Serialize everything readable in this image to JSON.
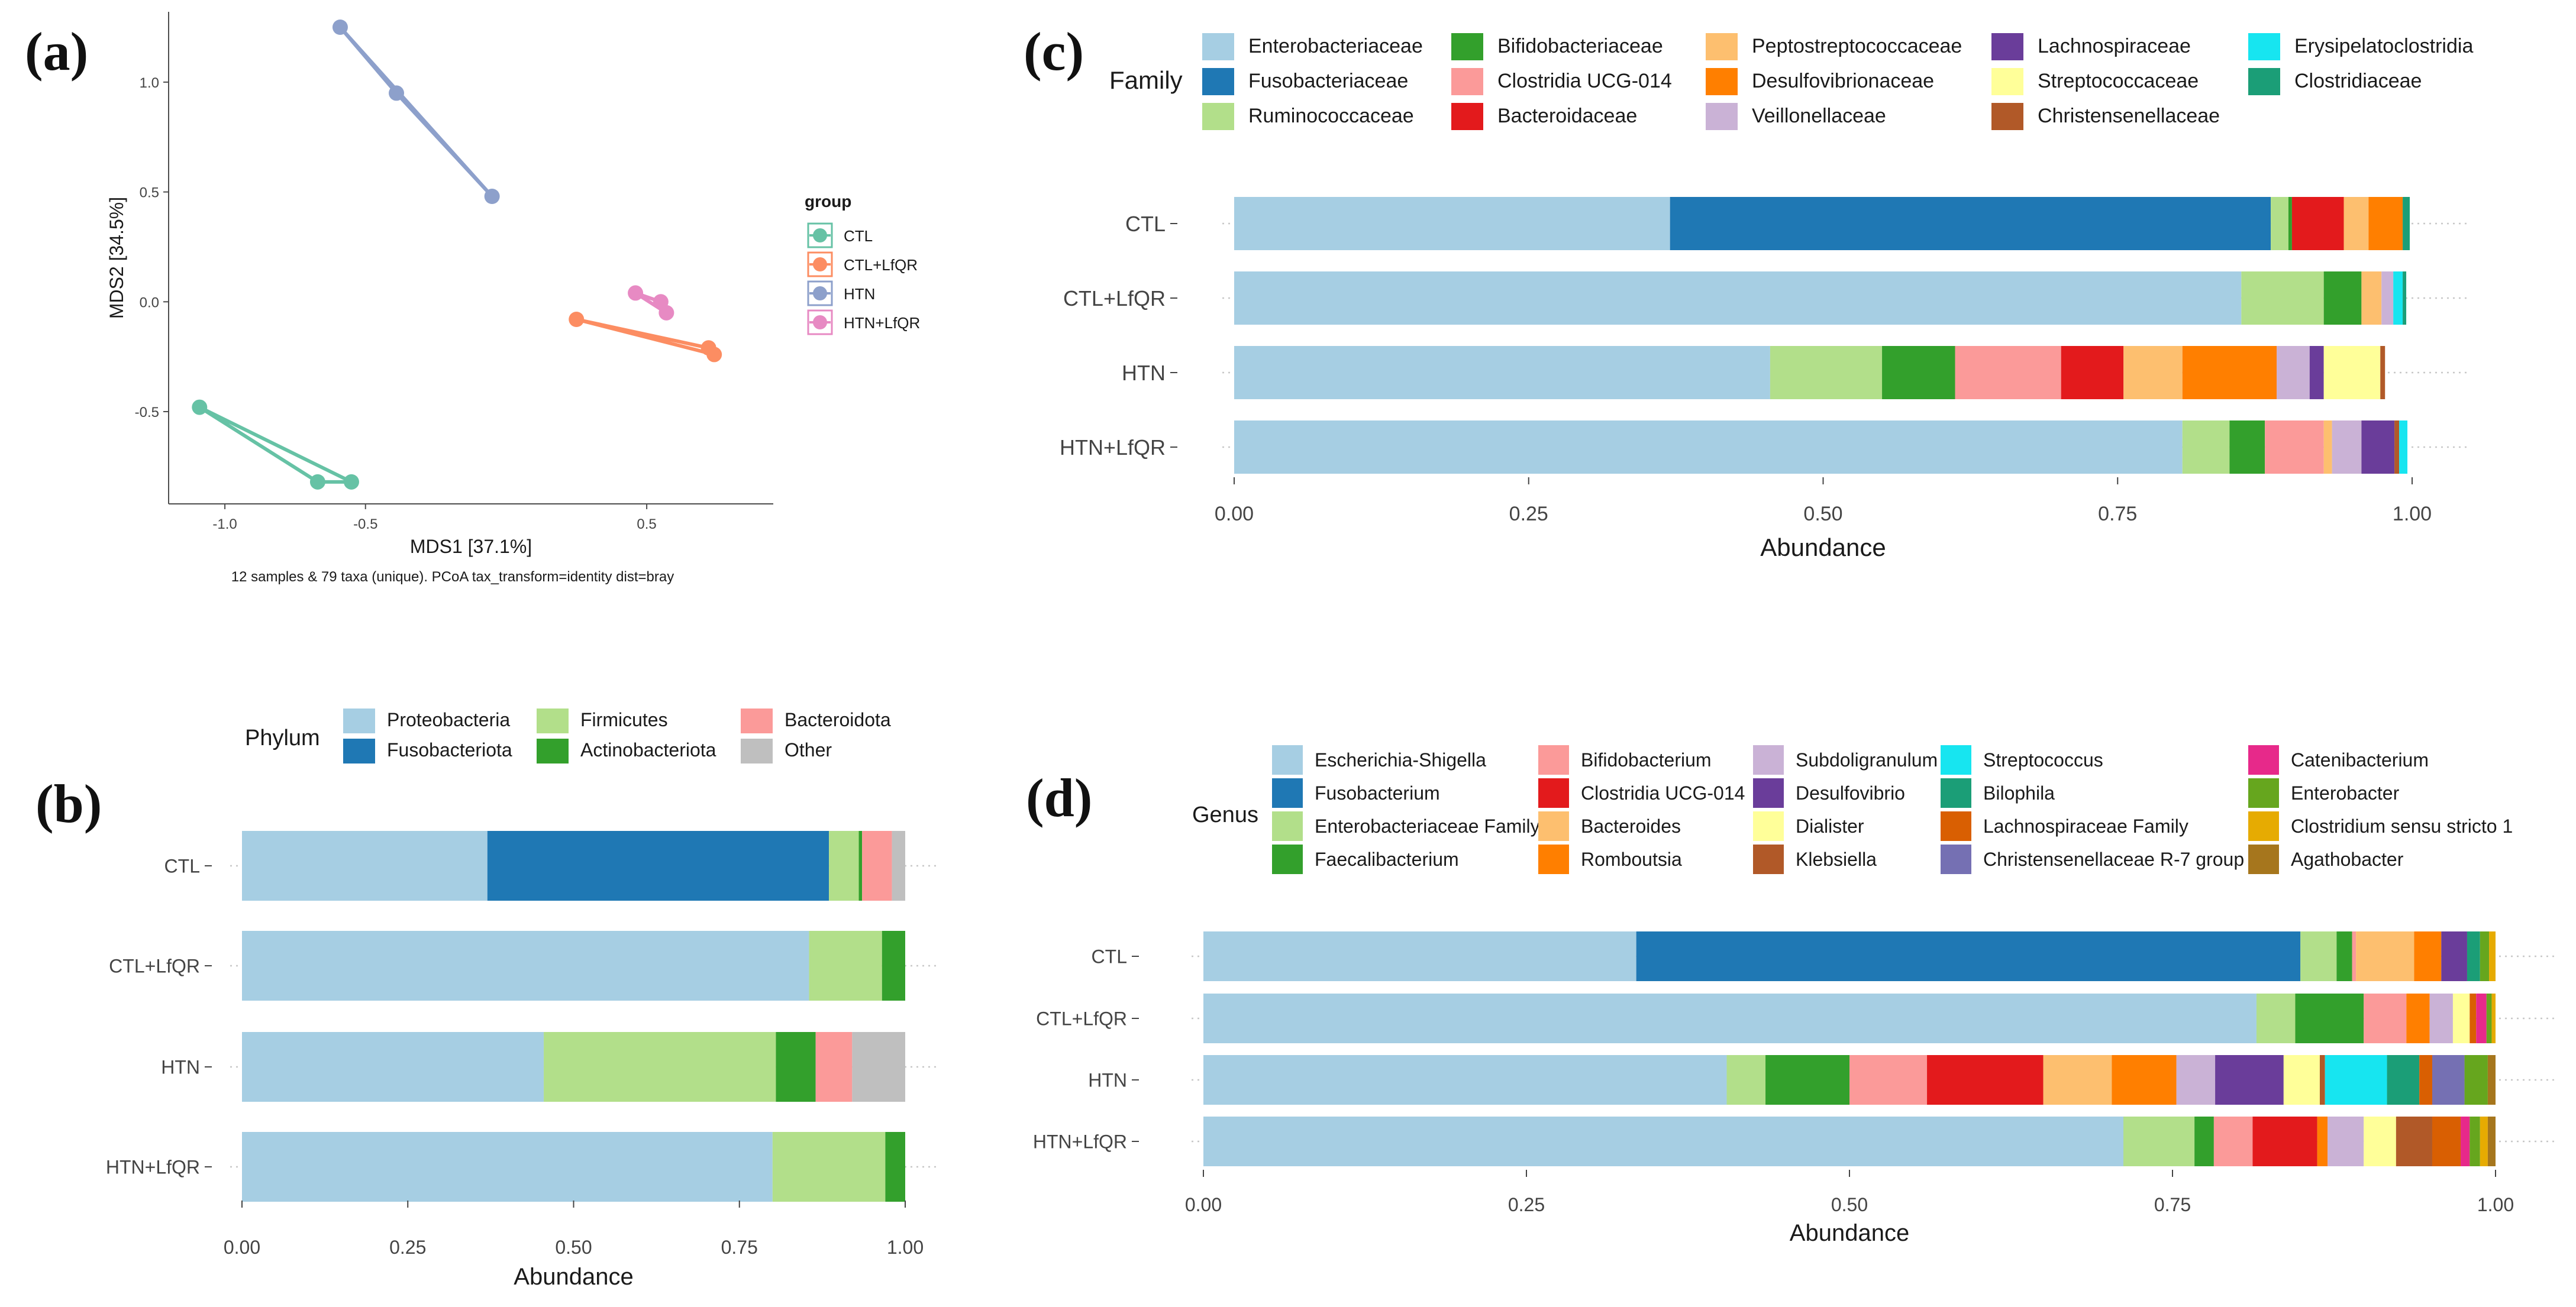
{
  "colors": {
    "text_dark": "#1a1a1a",
    "axis_gray": "#4d4d4d",
    "tick_gray": "#444444",
    "dotted_gray": "#c8c8c8",
    "CTL": "#66c2a5",
    "CTL+LfQR": "#fc8d62",
    "HTN": "#8da0cb",
    "HTN+LfQR": "#e78ac3"
  },
  "chart_data": [
    {
      "panel": "(a)",
      "type": "scatter",
      "xlabel": "MDS1 [37.1%]",
      "ylabel": "MDS2 [34.5%]",
      "caption": "12 samples & 79 taxa (unique). PCoA tax_transform=identity dist=bray",
      "xlim": [
        -1.2,
        0.95
      ],
      "ylim": [
        -0.92,
        1.32
      ],
      "xticks": [
        -1.0,
        -0.5,
        0.5
      ],
      "xtick_labels": [
        "-1.0",
        "-0.5",
        "0.5"
      ],
      "yticks": [
        1.0,
        0.5,
        0.0,
        -0.5
      ],
      "ytick_labels": [
        "1.0",
        "0.5",
        "0.0",
        "-0.5"
      ],
      "legend_title": "group",
      "groups": [
        {
          "name": "CTL",
          "points": [
            [
              -1.09,
              -0.48
            ],
            [
              -0.67,
              -0.82
            ],
            [
              -0.55,
              -0.82
            ]
          ]
        },
        {
          "name": "CTL+LfQR",
          "points": [
            [
              0.25,
              -0.08
            ],
            [
              0.72,
              -0.21
            ],
            [
              0.74,
              -0.24
            ]
          ]
        },
        {
          "name": "HTN",
          "points": [
            [
              -0.59,
              1.25
            ],
            [
              -0.39,
              0.95
            ],
            [
              -0.05,
              0.48
            ]
          ]
        },
        {
          "name": "HTN+LfQR",
          "points": [
            [
              0.46,
              0.04
            ],
            [
              0.55,
              0.0
            ],
            [
              0.57,
              -0.05
            ]
          ]
        }
      ]
    },
    {
      "panel": "(b)",
      "type": "bar",
      "orientation": "horizontal-stacked",
      "xlabel": "Abundance",
      "legend_title": "Phylum",
      "xlim": [
        0,
        1
      ],
      "xticks": [
        0,
        0.25,
        0.5,
        0.75,
        1
      ],
      "xtick_labels": [
        "0.00",
        "0.25",
        "0.50",
        "0.75",
        "1.00"
      ],
      "categories": [
        "CTL",
        "CTL+LfQR",
        "HTN",
        "HTN+LfQR"
      ],
      "series": [
        {
          "name": "Proteobacteria",
          "color": "#a6cee3",
          "values": [
            0.37,
            0.855,
            0.455,
            0.8
          ]
        },
        {
          "name": "Fusobacteriota",
          "color": "#1f78b4",
          "values": [
            0.515,
            0.0,
            0.0,
            0.0
          ]
        },
        {
          "name": "Firmicutes",
          "color": "#b2df8a",
          "values": [
            0.045,
            0.11,
            0.35,
            0.17
          ]
        },
        {
          "name": "Actinobacteriota",
          "color": "#33a02c",
          "values": [
            0.005,
            0.035,
            0.06,
            0.03
          ]
        },
        {
          "name": "Bacteroidota",
          "color": "#fb9a99",
          "values": [
            0.045,
            0.0,
            0.055,
            0.0
          ]
        },
        {
          "name": "Other",
          "color": "#bfbfbf",
          "values": [
            0.02,
            0.0,
            0.08,
            0.0
          ]
        }
      ]
    },
    {
      "panel": "(c)",
      "type": "bar",
      "orientation": "horizontal-stacked",
      "xlabel": "Abundance",
      "legend_title": "Family",
      "xlim": [
        0,
        1
      ],
      "xticks": [
        0,
        0.25,
        0.5,
        0.75,
        1
      ],
      "xtick_labels": [
        "0.00",
        "0.25",
        "0.50",
        "0.75",
        "1.00"
      ],
      "categories": [
        "CTL",
        "CTL+LfQR",
        "HTN",
        "HTN+LfQR"
      ],
      "series": [
        {
          "name": "Enterobacteriaceae",
          "color": "#a6cee3",
          "values": [
            0.37,
            0.855,
            0.455,
            0.805
          ]
        },
        {
          "name": "Fusobacteriaceae",
          "color": "#1f78b4",
          "values": [
            0.51,
            0.0,
            0.0,
            0.0
          ]
        },
        {
          "name": "Ruminococcaceae",
          "color": "#b2df8a",
          "values": [
            0.015,
            0.07,
            0.095,
            0.04
          ]
        },
        {
          "name": "Bifidobacteriaceae",
          "color": "#33a02c",
          "values": [
            0.003,
            0.032,
            0.062,
            0.03
          ]
        },
        {
          "name": "Clostridia UCG-014",
          "color": "#fb9a99",
          "values": [
            0.0,
            0.0,
            0.09,
            0.05
          ]
        },
        {
          "name": "Bacteroidaceae",
          "color": "#e31a1c",
          "values": [
            0.044,
            0.0,
            0.053,
            0.0
          ]
        },
        {
          "name": "Peptostreptococcaceae",
          "color": "#fdbf6f",
          "values": [
            0.021,
            0.017,
            0.05,
            0.007
          ]
        },
        {
          "name": "Desulfovibrionaceae",
          "color": "#ff7f00",
          "values": [
            0.029,
            0.0,
            0.08,
            0.0
          ]
        },
        {
          "name": "Veillonellaceae",
          "color": "#cab2d6",
          "values": [
            0.0,
            0.01,
            0.028,
            0.025
          ]
        },
        {
          "name": "Lachnospiraceae",
          "color": "#6a3d9a",
          "values": [
            0.0,
            0.0,
            0.012,
            0.028
          ]
        },
        {
          "name": "Streptococcaceae",
          "color": "#ffff99",
          "values": [
            0.0,
            0.0,
            0.048,
            0.0
          ]
        },
        {
          "name": "Christensenellaceae",
          "color": "#b15928",
          "values": [
            0.0,
            0.0,
            0.004,
            0.004
          ]
        },
        {
          "name": "Erysipelatoclostridia",
          "color": "#17e5f0",
          "values": [
            0.0,
            0.008,
            0.0,
            0.007
          ]
        },
        {
          "name": "Clostridiaceae",
          "color": "#1b9e77",
          "values": [
            0.006,
            0.003,
            0.0,
            0.0
          ]
        }
      ]
    },
    {
      "panel": "(d)",
      "type": "bar",
      "orientation": "horizontal-stacked",
      "xlabel": "Abundance",
      "legend_title": "Genus",
      "xlim": [
        0,
        1
      ],
      "xticks": [
        0,
        0.25,
        0.5,
        0.75,
        1
      ],
      "xtick_labels": [
        "0.00",
        "0.25",
        "0.50",
        "0.75",
        "1.00"
      ],
      "categories": [
        "CTL",
        "CTL+LfQR",
        "HTN",
        "HTN+LfQR"
      ],
      "series": [
        {
          "name": "Escherichia-Shigella",
          "color": "#a6cee3",
          "values": [
            0.335,
            0.815,
            0.405,
            0.712
          ]
        },
        {
          "name": "Fusobacterium",
          "color": "#1f78b4",
          "values": [
            0.514,
            0.0,
            0.0,
            0.0
          ]
        },
        {
          "name": "Enterobacteriaceae Family",
          "color": "#b2df8a",
          "values": [
            0.028,
            0.03,
            0.03,
            0.055
          ]
        },
        {
          "name": "Faecalibacterium",
          "color": "#33a02c",
          "values": [
            0.012,
            0.053,
            0.065,
            0.015
          ]
        },
        {
          "name": "Bifidobacterium",
          "color": "#fb9a99",
          "values": [
            0.003,
            0.033,
            0.06,
            0.03
          ]
        },
        {
          "name": "Clostridia UCG-014",
          "color": "#e31a1c",
          "values": [
            0.0,
            0.0,
            0.09,
            0.05
          ]
        },
        {
          "name": "Bacteroides",
          "color": "#fdbf6f",
          "values": [
            0.045,
            0.0,
            0.053,
            0.0
          ]
        },
        {
          "name": "Romboutsia",
          "color": "#ff7f00",
          "values": [
            0.021,
            0.018,
            0.05,
            0.008
          ]
        },
        {
          "name": "Subdoligranulum",
          "color": "#cab2d6",
          "values": [
            0.0,
            0.018,
            0.03,
            0.028
          ]
        },
        {
          "name": "Desulfovibrio",
          "color": "#6a3d9a",
          "values": [
            0.02,
            0.0,
            0.053,
            0.0
          ]
        },
        {
          "name": "Dialister",
          "color": "#ffff99",
          "values": [
            0.0,
            0.013,
            0.028,
            0.025
          ]
        },
        {
          "name": "Klebsiella",
          "color": "#b15928",
          "values": [
            0.0,
            0.0,
            0.004,
            0.028
          ]
        },
        {
          "name": "Streptococcus",
          "color": "#17e5f0",
          "values": [
            0.0,
            0.0,
            0.048,
            0.0
          ]
        },
        {
          "name": "Bilophila",
          "color": "#1b9e77",
          "values": [
            0.01,
            0.0,
            0.025,
            0.0
          ]
        },
        {
          "name": "Lachnospiraceae Family",
          "color": "#d95f02",
          "values": [
            0.0,
            0.005,
            0.01,
            0.022
          ]
        },
        {
          "name": "Christensenellaceae R-7 group",
          "color": "#7570b3",
          "values": [
            0.0,
            0.0,
            0.025,
            0.0
          ]
        },
        {
          "name": "Catenibacterium",
          "color": "#e7298a",
          "values": [
            0.0,
            0.008,
            0.0,
            0.007
          ]
        },
        {
          "name": "Enterobacter",
          "color": "#66a61e",
          "values": [
            0.007,
            0.004,
            0.018,
            0.008
          ]
        },
        {
          "name": "Clostridium sensu stricto 1",
          "color": "#e6ab02",
          "values": [
            0.005,
            0.003,
            0.0,
            0.006
          ]
        },
        {
          "name": "Agathobacter",
          "color": "#a6761d",
          "values": [
            0.0,
            0.0,
            0.006,
            0.006
          ]
        }
      ]
    }
  ]
}
